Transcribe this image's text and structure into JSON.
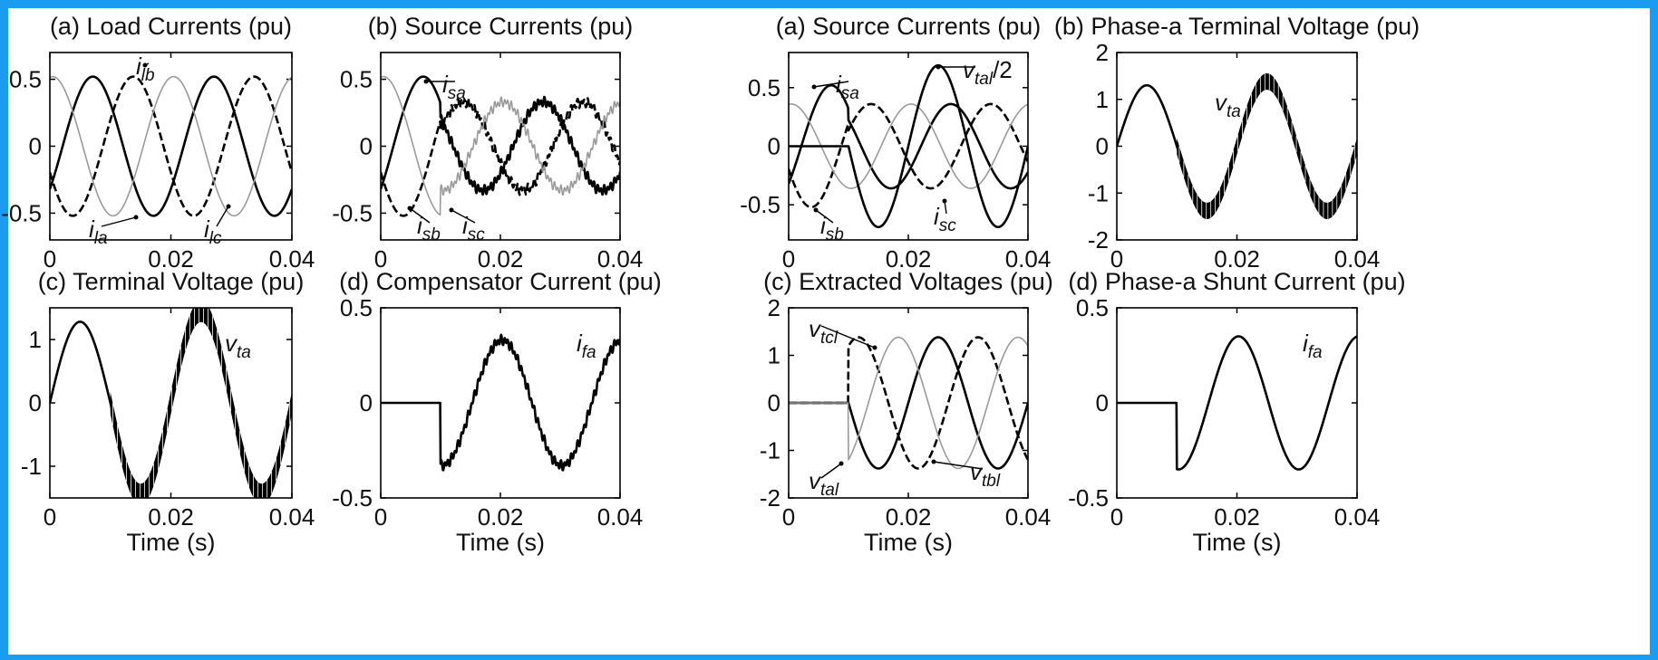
{
  "chart_data": [
    {
      "id": "p1",
      "type": "line",
      "title": "(a) Load Currents (pu)",
      "xlabel": "",
      "xlim": [
        0,
        0.04
      ],
      "ylim": [
        -0.7,
        0.7
      ],
      "xticks": [
        0,
        0.02,
        0.04
      ],
      "xticklabels": [
        "0",
        "0.02",
        "0.04"
      ],
      "yticks": [
        -0.5,
        0,
        0.5
      ],
      "yticklabels": [
        "-0.5",
        "0",
        "0.5"
      ],
      "series": [
        {
          "name": "i_la",
          "function": "sin",
          "amp": 0.52,
          "freq": 50,
          "phase_deg": -38,
          "style": "solid"
        },
        {
          "name": "i_lb",
          "function": "sin",
          "amp": 0.52,
          "freq": 50,
          "phase_deg": -158,
          "style": "dashed"
        },
        {
          "name": "i_lc",
          "function": "sin",
          "amp": 0.52,
          "freq": 50,
          "phase_deg": 82,
          "style": "light"
        }
      ],
      "annotations": [
        {
          "base": "i",
          "sub": "la"
        },
        {
          "base": "i",
          "sub": "lb"
        },
        {
          "base": "i",
          "sub": "lc"
        }
      ]
    },
    {
      "id": "p2",
      "type": "line",
      "title": "(b) Source Currents (pu)",
      "xlabel": "",
      "xlim": [
        0,
        0.04
      ],
      "ylim": [
        -0.7,
        0.7
      ],
      "xticks": [
        0,
        0.02,
        0.04
      ],
      "xticklabels": [
        "0",
        "0.02",
        "0.04"
      ],
      "yticks": [
        -0.5,
        0,
        0.5
      ],
      "yticklabels": [
        "-0.5",
        "0",
        "0.5"
      ],
      "series": [
        {
          "name": "i_sa",
          "function": "sin",
          "amp": 0.52,
          "amp_after": 0.33,
          "freq": 50,
          "phase_deg": -38,
          "style": "solid",
          "ripple_after": 0.01
        },
        {
          "name": "i_sb",
          "function": "sin",
          "amp": 0.52,
          "amp_after": 0.33,
          "freq": 50,
          "phase_deg": -158,
          "style": "dashed",
          "ripple_after": 0.01
        },
        {
          "name": "i_sc",
          "function": "sin",
          "amp": 0.52,
          "amp_after": 0.33,
          "freq": 50,
          "phase_deg": 82,
          "style": "light",
          "ripple_after": 0.01
        }
      ],
      "annotations": [
        {
          "base": "i",
          "sub": "sa"
        },
        {
          "base": "i",
          "sub": "sb"
        },
        {
          "base": "i",
          "sub": "sc"
        }
      ]
    },
    {
      "id": "p3",
      "type": "line",
      "title": "(c) Terminal Voltage (pu)",
      "xlabel": "Time (s)",
      "xlim": [
        0,
        0.04
      ],
      "ylim": [
        -1.5,
        1.5
      ],
      "xticks": [
        0,
        0.02,
        0.04
      ],
      "xticklabels": [
        "0",
        "0.02",
        "0.04"
      ],
      "yticks": [
        -1,
        0,
        1
      ],
      "yticklabels": [
        "-1",
        "0",
        "1"
      ],
      "series": [
        {
          "name": "v_ta",
          "function": "sin",
          "amp": 1.28,
          "amp_after": 1.45,
          "freq": 50,
          "phase_deg": 0,
          "style": "solid",
          "band_after": 0.01,
          "band_width": 0.35
        }
      ],
      "annotations": [
        {
          "base": "v",
          "sub": "ta"
        }
      ]
    },
    {
      "id": "p4",
      "type": "line",
      "title": "(d) Compensator Current (pu)",
      "xlabel": "Time (s)",
      "xlim": [
        0,
        0.04
      ],
      "ylim": [
        -0.5,
        0.5
      ],
      "xticks": [
        0,
        0.02,
        0.04
      ],
      "xticklabels": [
        "0",
        "0.02",
        "0.04"
      ],
      "yticks": [
        -0.5,
        0,
        0.5
      ],
      "yticklabels": [
        "-0.5",
        "0",
        "0.5"
      ],
      "series": [
        {
          "name": "i_fa",
          "function": "sin",
          "amp": 0.33,
          "freq": 50,
          "phase_deg": 85,
          "style": "solid",
          "start": 0.01,
          "ripple_after": 0.01
        }
      ],
      "annotations": [
        {
          "base": "i",
          "sub": "fa"
        }
      ]
    },
    {
      "id": "p5",
      "type": "line",
      "title": "(a) Source Currents (pu)",
      "xlabel": "",
      "xlim": [
        0,
        0.04
      ],
      "ylim": [
        -0.8,
        0.8
      ],
      "xticks": [
        0,
        0.02,
        0.04
      ],
      "xticklabels": [
        "0",
        "0.02",
        "0.04"
      ],
      "yticks": [
        -0.5,
        0,
        0.5
      ],
      "yticklabels": [
        "-0.5",
        "0",
        "0.5"
      ],
      "series": [
        {
          "name": "i_sa",
          "function": "sin",
          "amp": 0.52,
          "amp_after": 0.36,
          "freq": 50,
          "phase_deg": -38,
          "style": "solid"
        },
        {
          "name": "i_sb",
          "function": "sin",
          "amp": 0.52,
          "amp_after": 0.36,
          "freq": 50,
          "phase_deg": -158,
          "style": "dashed"
        },
        {
          "name": "i_sc",
          "function": "sin",
          "amp": 0.36,
          "freq": 50,
          "phase_deg": 82,
          "style": "light"
        },
        {
          "name": "v_tal/2",
          "function": "sin",
          "amp": 0.69,
          "freq": 50,
          "phase_deg": 0,
          "style": "solid",
          "start": 0.01
        }
      ],
      "annotations": [
        {
          "base": "i",
          "sub": "sa"
        },
        {
          "base": "i",
          "sub": "sb"
        },
        {
          "base": "i",
          "sub": "sc"
        },
        {
          "base": "v",
          "sub": "tal",
          "suffix": "/2"
        }
      ]
    },
    {
      "id": "p6",
      "type": "line",
      "title": "(b) Phase-a Terminal Voltage (pu)",
      "xlabel": "",
      "xlim": [
        0,
        0.04
      ],
      "ylim": [
        -2,
        2
      ],
      "xticks": [
        0,
        0.02,
        0.04
      ],
      "xticklabels": [
        "0",
        "0.02",
        "0.04"
      ],
      "yticks": [
        -2,
        -1,
        0,
        1,
        2
      ],
      "yticklabels": [
        "-2",
        "-1",
        "0",
        "1",
        "2"
      ],
      "series": [
        {
          "name": "v_ta",
          "function": "sin",
          "amp": 1.3,
          "amp_after": 1.38,
          "freq": 50,
          "phase_deg": 0,
          "style": "solid",
          "band_after": 0.01,
          "band_width": 0.35
        }
      ],
      "annotations": [
        {
          "base": "v",
          "sub": "ta"
        }
      ]
    },
    {
      "id": "p7",
      "type": "line",
      "title": "(c) Extracted Voltages (pu)",
      "xlabel": "Time (s)",
      "xlim": [
        0,
        0.04
      ],
      "ylim": [
        -2,
        2
      ],
      "xticks": [
        0,
        0.02,
        0.04
      ],
      "xticklabels": [
        "0",
        "0.02",
        "0.04"
      ],
      "yticks": [
        -2,
        -1,
        0,
        1,
        2
      ],
      "yticklabels": [
        "-2",
        "-1",
        "0",
        "1",
        "2"
      ],
      "series": [
        {
          "name": "v_tal",
          "function": "sin",
          "amp": 1.38,
          "freq": 50,
          "phase_deg": 0,
          "style": "solid",
          "start": 0.01
        },
        {
          "name": "v_tbl",
          "function": "sin",
          "amp": 1.38,
          "freq": 50,
          "phase_deg": -120,
          "style": "dashed",
          "start": 0.01
        },
        {
          "name": "v_tcl",
          "function": "sin",
          "amp": 1.38,
          "freq": 50,
          "phase_deg": 120,
          "style": "light",
          "start": 0.01
        }
      ],
      "annotations": [
        {
          "base": "v",
          "sub": "tcl"
        },
        {
          "base": "v",
          "sub": "tal"
        },
        {
          "base": "v",
          "sub": "tbl"
        }
      ]
    },
    {
      "id": "p8",
      "type": "line",
      "title": "(d) Phase-a Shunt Current (pu)",
      "xlabel": "Time (s)",
      "xlim": [
        0,
        0.04
      ],
      "ylim": [
        -0.5,
        0.5
      ],
      "xticks": [
        0,
        0.02,
        0.04
      ],
      "xticklabels": [
        "0",
        "0.02",
        "0.04"
      ],
      "yticks": [
        -0.5,
        0,
        0.5
      ],
      "yticklabels": [
        "-0.5",
        "0",
        "0.5"
      ],
      "series": [
        {
          "name": "i_fa",
          "function": "sin",
          "amp": 0.35,
          "freq": 50,
          "phase_deg": 85,
          "style": "solid",
          "start": 0.01
        }
      ],
      "annotations": [
        {
          "base": "i",
          "sub": "fa"
        }
      ]
    }
  ]
}
